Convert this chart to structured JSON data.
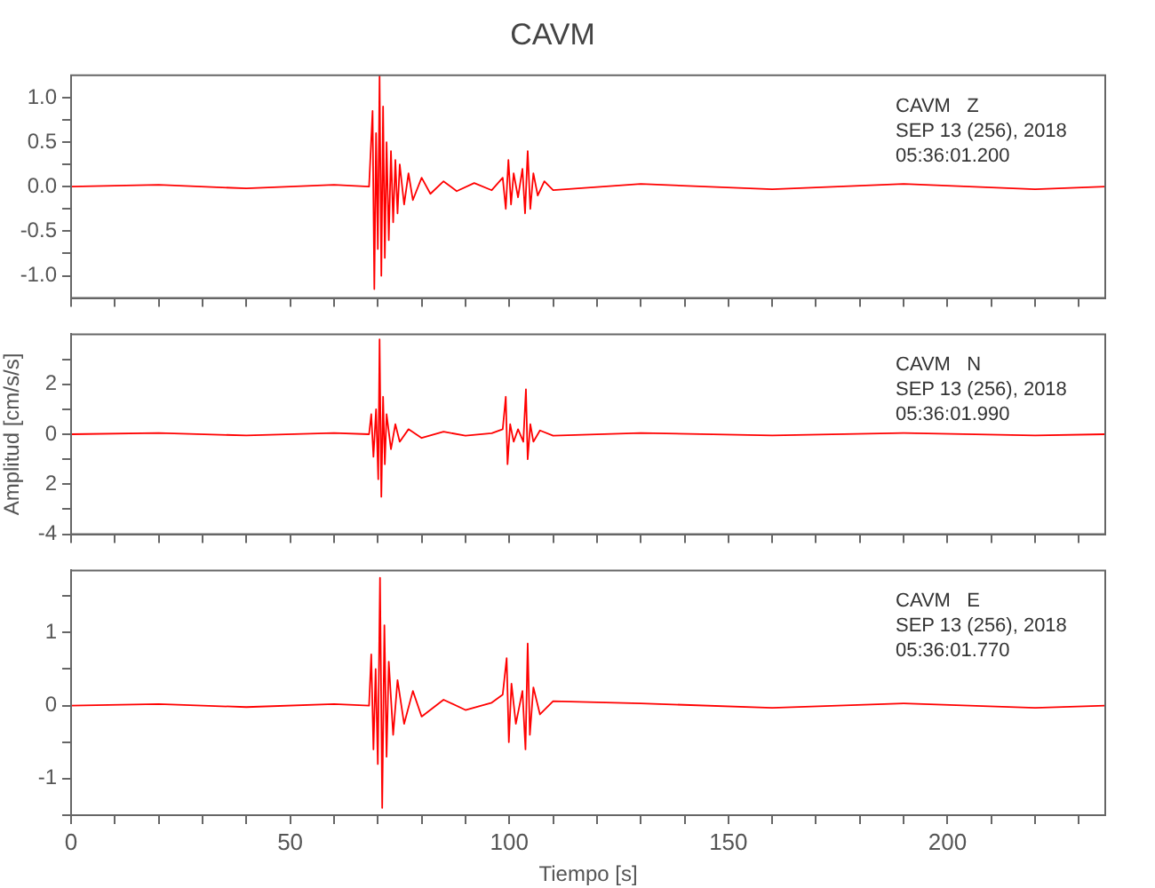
{
  "chart_data": [
    {
      "type": "line",
      "title": "CAVM",
      "annotations": [
        "CAVM   Z",
        "SEP 13 (256), 2018",
        "05:36:01.200"
      ],
      "grid": false,
      "marker": "none",
      "tick_labels": "y",
      "xlim": [
        0,
        236
      ],
      "xticks": [
        0,
        {
          "value": 10,
          "label": null
        },
        {
          "value": 20,
          "label": null
        },
        {
          "value": 30,
          "label": null
        },
        {
          "value": 40,
          "label": null
        },
        50,
        {
          "value": 60,
          "label": null
        },
        {
          "value": 70,
          "label": null
        },
        {
          "value": 80,
          "label": null
        },
        {
          "value": 90,
          "label": null
        },
        100,
        {
          "value": 110,
          "label": null
        },
        {
          "value": 120,
          "label": null
        },
        {
          "value": 130,
          "label": null
        },
        {
          "value": 140,
          "label": null
        },
        150,
        {
          "value": 160,
          "label": null
        },
        {
          "value": 170,
          "label": null
        },
        {
          "value": 180,
          "label": null
        },
        {
          "value": 190,
          "label": null
        },
        200,
        {
          "value": 210,
          "label": null
        },
        {
          "value": 220,
          "label": null
        },
        {
          "value": 230,
          "label": null
        }
      ],
      "ylim": [
        -1.25,
        1.25
      ],
      "yticks": [
        {
          "value": -1,
          "label": "-1.0"
        },
        {
          "value": -0.75,
          "label": null
        },
        {
          "value": -0.5,
          "label": "-0.5"
        },
        {
          "value": -0.25,
          "label": null
        },
        {
          "value": 0,
          "label": "0.0"
        },
        {
          "value": 0.25,
          "label": null
        },
        {
          "value": 0.5,
          "label": "0.5"
        },
        {
          "value": 0.75,
          "label": null
        },
        {
          "value": 1,
          "label": "1.0"
        }
      ],
      "series": [
        {
          "color": "#ff0000",
          "x": [
            0,
            20,
            40,
            60,
            68,
            68.8,
            69.2,
            69.6,
            70,
            70.4,
            70.8,
            71.2,
            71.6,
            72,
            72.5,
            73,
            73.5,
            74,
            74.5,
            75,
            76,
            77,
            78,
            80,
            82,
            85,
            88,
            92,
            96,
            98.5,
            99.2,
            99.8,
            100.4,
            101,
            102,
            103,
            103.6,
            104.2,
            104.8,
            105.5,
            106.5,
            108,
            110,
            130,
            160,
            190,
            220,
            236
          ],
          "values": [
            0,
            0.02,
            -0.02,
            0.02,
            0,
            0.85,
            -1.15,
            0.6,
            -0.7,
            1.25,
            -1.0,
            0.9,
            -0.8,
            0.5,
            -0.6,
            0.4,
            -0.4,
            0.3,
            -0.3,
            0.25,
            -0.2,
            0.15,
            -0.15,
            0.1,
            -0.08,
            0.06,
            -0.05,
            0.04,
            -0.04,
            0.1,
            -0.25,
            0.3,
            -0.2,
            0.15,
            -0.12,
            0.2,
            -0.3,
            0.4,
            -0.25,
            0.15,
            -0.1,
            0.06,
            -0.04,
            0.03,
            -0.03,
            0.03,
            -0.03,
            0
          ]
        }
      ]
    },
    {
      "type": "line",
      "ylabel": "Amplitud [cm/s/s]",
      "annotations": [
        "CAVM   N",
        "SEP 13 (256), 2018",
        "05:36:01.990"
      ],
      "grid": false,
      "marker": "none",
      "tick_labels": "y",
      "xlim": [
        0,
        236
      ],
      "xticks": [
        0,
        {
          "value": 10,
          "label": null
        },
        {
          "value": 20,
          "label": null
        },
        {
          "value": 30,
          "label": null
        },
        {
          "value": 40,
          "label": null
        },
        50,
        {
          "value": 60,
          "label": null
        },
        {
          "value": 70,
          "label": null
        },
        {
          "value": 80,
          "label": null
        },
        {
          "value": 90,
          "label": null
        },
        100,
        {
          "value": 110,
          "label": null
        },
        {
          "value": 120,
          "label": null
        },
        {
          "value": 130,
          "label": null
        },
        {
          "value": 140,
          "label": null
        },
        150,
        {
          "value": 160,
          "label": null
        },
        {
          "value": 170,
          "label": null
        },
        {
          "value": 180,
          "label": null
        },
        {
          "value": 190,
          "label": null
        },
        200,
        {
          "value": 210,
          "label": null
        },
        {
          "value": 220,
          "label": null
        },
        {
          "value": 230,
          "label": null
        }
      ],
      "ylim": [
        -4,
        4
      ],
      "yticks": [
        -4,
        {
          "value": -3,
          "label": null
        },
        {
          "value": -2,
          "label": "2"
        },
        {
          "value": -1,
          "label": null
        },
        0,
        {
          "value": 1,
          "label": null
        },
        2,
        {
          "value": 3,
          "label": null
        }
      ],
      "series": [
        {
          "color": "#ff0000",
          "x": [
            0,
            20,
            40,
            60,
            68,
            68.5,
            69,
            69.6,
            70.1,
            70.4,
            70.8,
            71.2,
            71.6,
            72,
            73,
            74,
            75,
            77,
            80,
            85,
            90,
            96,
            98.5,
            99.2,
            99.6,
            100.2,
            101,
            102,
            103.2,
            103.8,
            104.2,
            104.8,
            105.5,
            107,
            110,
            130,
            160,
            190,
            220,
            236
          ],
          "values": [
            0,
            0.05,
            -0.05,
            0.05,
            0,
            0.8,
            -0.9,
            1.0,
            -1.8,
            3.8,
            -2.5,
            1.5,
            -1.2,
            0.8,
            -0.6,
            0.4,
            -0.3,
            0.2,
            -0.15,
            0.1,
            -0.06,
            0.04,
            0.2,
            1.5,
            -1.2,
            0.4,
            -0.3,
            0.2,
            -0.3,
            1.8,
            -1.0,
            0.4,
            -0.3,
            0.15,
            -0.06,
            0.05,
            -0.05,
            0.05,
            -0.05,
            0
          ]
        }
      ]
    },
    {
      "type": "line",
      "xlabel": "Tiempo [s]",
      "annotations": [
        "CAVM   E",
        "SEP 13 (256), 2018",
        "05:36:01.770"
      ],
      "grid": false,
      "marker": "none",
      "xlim": [
        0,
        236
      ],
      "xticks": [
        0,
        {
          "value": 10,
          "label": null
        },
        {
          "value": 20,
          "label": null
        },
        {
          "value": 30,
          "label": null
        },
        {
          "value": 40,
          "label": null
        },
        50,
        {
          "value": 60,
          "label": null
        },
        {
          "value": 70,
          "label": null
        },
        {
          "value": 80,
          "label": null
        },
        {
          "value": 90,
          "label": null
        },
        100,
        {
          "value": 110,
          "label": null
        },
        {
          "value": 120,
          "label": null
        },
        {
          "value": 130,
          "label": null
        },
        {
          "value": 140,
          "label": null
        },
        150,
        {
          "value": 160,
          "label": null
        },
        {
          "value": 170,
          "label": null
        },
        {
          "value": 180,
          "label": null
        },
        {
          "value": 190,
          "label": null
        },
        200,
        {
          "value": 210,
          "label": null
        },
        {
          "value": 220,
          "label": null
        },
        {
          "value": 230,
          "label": null
        }
      ],
      "ylim": [
        -1.5,
        1.85
      ],
      "yticks": [
        {
          "value": -1.5,
          "label": null
        },
        -1,
        {
          "value": -0.5,
          "label": null
        },
        0,
        {
          "value": 0.5,
          "label": null
        },
        1,
        {
          "value": 1.5,
          "label": null
        }
      ],
      "series": [
        {
          "color": "#ff0000",
          "x": [
            0,
            20,
            40,
            60,
            68,
            68.5,
            69,
            69.5,
            70,
            70.5,
            71,
            71.5,
            72,
            72.5,
            73.5,
            74.5,
            76,
            78,
            80,
            85,
            90,
            96,
            98.5,
            99.4,
            99.9,
            100.5,
            101.5,
            103,
            103.7,
            104.2,
            104.7,
            105.5,
            107,
            110,
            130,
            160,
            190,
            220,
            236
          ],
          "values": [
            0,
            0.02,
            -0.02,
            0.02,
            0,
            0.7,
            -0.6,
            0.5,
            -0.8,
            1.75,
            -1.4,
            1.1,
            -0.7,
            0.6,
            -0.4,
            0.35,
            -0.25,
            0.2,
            -0.15,
            0.08,
            -0.06,
            0.04,
            0.15,
            0.65,
            -0.5,
            0.3,
            -0.25,
            0.2,
            -0.6,
            0.85,
            -0.4,
            0.25,
            -0.12,
            0.06,
            0.03,
            -0.03,
            0.03,
            -0.03,
            0
          ]
        }
      ]
    }
  ]
}
